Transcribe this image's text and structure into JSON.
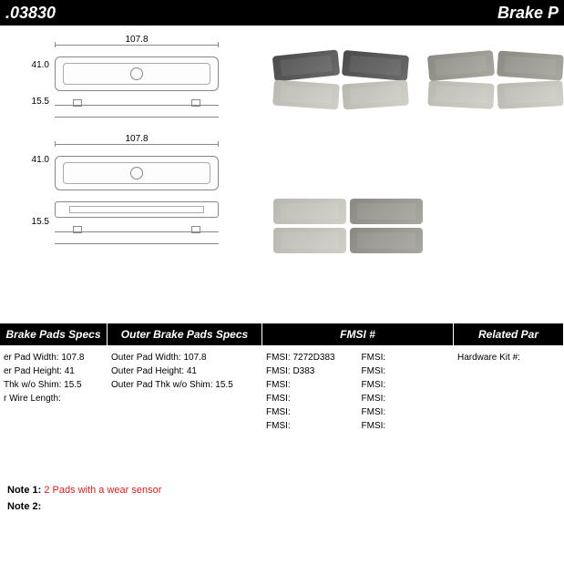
{
  "header": {
    "part_number": ".03830",
    "title_right": "Brake P"
  },
  "dimensions": {
    "width_top1": "107.8",
    "height1": "41.0",
    "thickness1": "15.5",
    "width_top2": "107.8",
    "height2": "41.0",
    "thickness2": "15.5"
  },
  "specs": {
    "inner": {
      "header": "Brake Pads Specs",
      "rows": [
        {
          "label": "er Pad Width:",
          "value": "107.8"
        },
        {
          "label": "er Pad Height:",
          "value": "41"
        },
        {
          "label": "Thk w/o Shim:",
          "value": "15.5"
        },
        {
          "label": "r Wire Length:",
          "value": ""
        }
      ]
    },
    "outer": {
      "header": "Outer Brake Pads Specs",
      "rows": [
        {
          "label": "Outer Pad Width:",
          "value": "107.8"
        },
        {
          "label": "Outer Pad Height:",
          "value": "41"
        },
        {
          "label": "Outer Pad Thk w/o Shim:",
          "value": "15.5"
        }
      ]
    },
    "fmsi": {
      "header": "FMSI #",
      "col1": [
        {
          "label": "FMSI:",
          "value": "7272D383"
        },
        {
          "label": "FMSI:",
          "value": "D383"
        },
        {
          "label": "FMSI:",
          "value": ""
        },
        {
          "label": "FMSI:",
          "value": ""
        },
        {
          "label": "FMSI:",
          "value": ""
        },
        {
          "label": "FMSI:",
          "value": ""
        }
      ],
      "col2": [
        {
          "label": "FMSI:",
          "value": ""
        },
        {
          "label": "FMSI:",
          "value": ""
        },
        {
          "label": "FMSI:",
          "value": ""
        },
        {
          "label": "FMSI:",
          "value": ""
        },
        {
          "label": "FMSI:",
          "value": ""
        },
        {
          "label": "FMSI:",
          "value": ""
        }
      ]
    },
    "related": {
      "header": "Related Par",
      "rows": [
        {
          "label": "Hardware Kit #:",
          "value": ""
        }
      ]
    }
  },
  "notes": {
    "note1_label": "Note 1:",
    "note1_text": "2 Pads with a wear sensor",
    "note2_label": "Note 2:",
    "note2_text": ""
  },
  "layout": {
    "col_widths": {
      "inner": 118,
      "outer": 170,
      "fmsi": 210,
      "related": 121
    }
  },
  "colors": {
    "header_bg": "#000000",
    "header_fg": "#ffffff",
    "note_highlight": "#d02020",
    "background": "#ffffff"
  }
}
